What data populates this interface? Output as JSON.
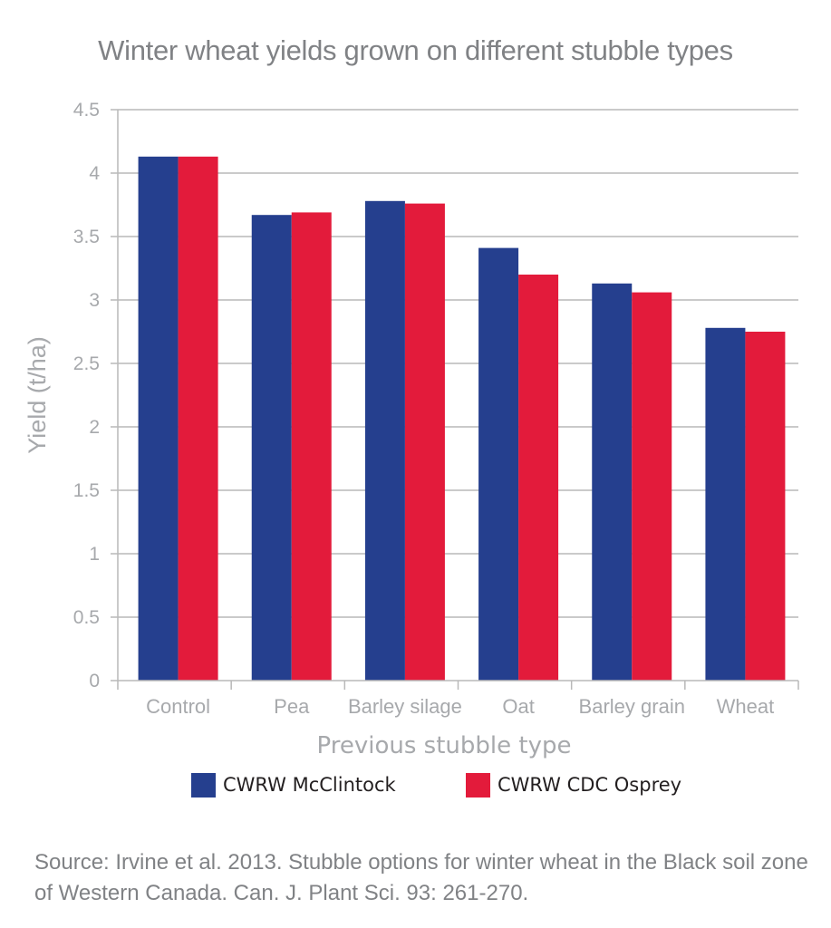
{
  "title": "Winter wheat yields grown on different stubble types",
  "source_note": "Source: Irvine et al. 2013. Stubble options for winter wheat in the Black soil zone of Western Canada. Can. J. Plant Sci. 93: 261-270.",
  "colors": {
    "mcclintock": "#253f8e",
    "osprey": "#e31b3b",
    "grid": "#b9b9b9",
    "axis_text": "#a7a9ac",
    "title_text": "#808285"
  },
  "chart_data": {
    "type": "bar",
    "title": "Winter wheat yields grown on different stubble types",
    "xlabel": "Previous stubble type",
    "ylabel": "Yield (t/ha)",
    "ylim": [
      0,
      4.5
    ],
    "yticks": [
      "0",
      "0.5",
      "1",
      "1.5",
      "2",
      "2.5",
      "3",
      "3.5",
      "4",
      "4.5"
    ],
    "grid": true,
    "legend_position": "bottom",
    "categories": [
      "Control",
      "Pea",
      "Barley silage",
      "Oat",
      "Barley grain",
      "Wheat"
    ],
    "series": [
      {
        "name": "CWRW McClintock",
        "color": "#253f8e",
        "values": [
          4.13,
          3.67,
          3.78,
          3.41,
          3.13,
          2.78
        ]
      },
      {
        "name": "CWRW CDC Osprey",
        "color": "#e31b3b",
        "values": [
          4.13,
          3.69,
          3.76,
          3.2,
          3.06,
          2.75
        ]
      }
    ]
  }
}
